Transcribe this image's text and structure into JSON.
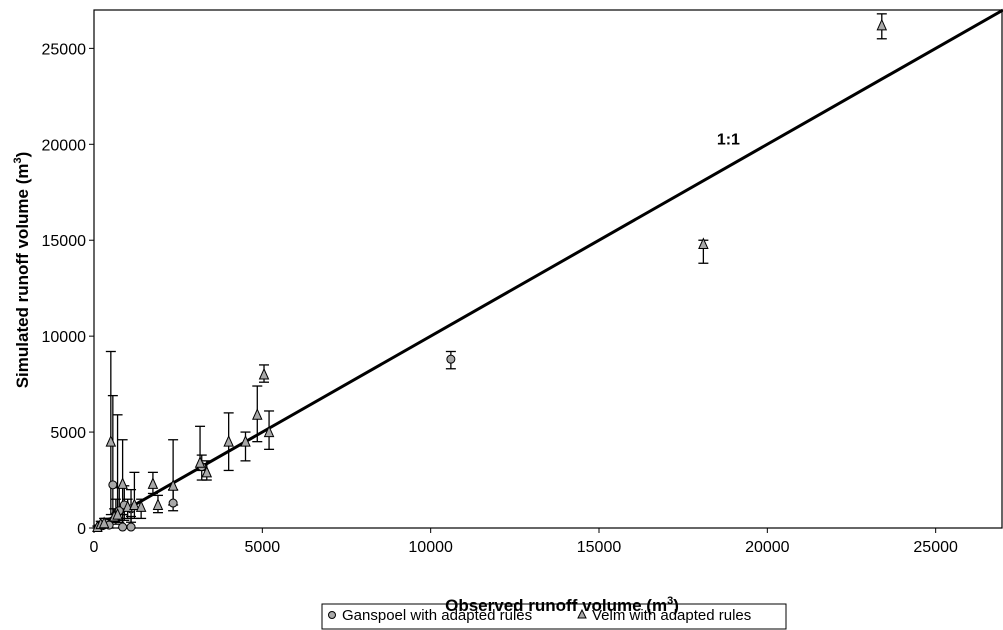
{
  "chart_data": {
    "type": "scatter",
    "xlabel": "Observed runoff volume (m",
    "xlabel_sup": "3",
    "xlabel_end": ")",
    "ylabel": "Simulated runoff volume (m",
    "ylabel_sup": "3",
    "ylabel_end": ")",
    "xlim": [
      0,
      27000
    ],
    "ylim": [
      0,
      27000
    ],
    "x_ticks": [
      0,
      5000,
      10000,
      15000,
      20000,
      25000
    ],
    "y_ticks": [
      0,
      5000,
      10000,
      15000,
      20000,
      25000
    ],
    "x_tick_labels": [
      "0",
      "5000",
      "10000",
      "15000",
      "20000",
      "25000"
    ],
    "y_tick_labels": [
      "0",
      "5000",
      "10000",
      "15000",
      "20000",
      "25000"
    ],
    "grid": false,
    "legend_position": "bottom-center",
    "reference_line": {
      "label": "1:1",
      "from": [
        0,
        0
      ],
      "to": [
        27000,
        27000
      ],
      "label_at": [
        18500,
        20000
      ]
    },
    "series": [
      {
        "name": "Ganspoel with adapted rules",
        "marker": "circle",
        "color": "#a8a8a8",
        "points": [
          {
            "x": 150,
            "y": 50,
            "lo": 0,
            "hi": 150
          },
          {
            "x": 250,
            "y": 120,
            "lo": 0,
            "hi": 300
          },
          {
            "x": 350,
            "y": 250,
            "lo": 50,
            "hi": 500
          },
          {
            "x": 450,
            "y": 150,
            "lo": 0,
            "hi": 400
          },
          {
            "x": 560,
            "y": 2250,
            "lo": 500,
            "hi": 6900
          },
          {
            "x": 650,
            "y": 700,
            "lo": 200,
            "hi": 1500
          },
          {
            "x": 750,
            "y": 900,
            "lo": 300,
            "hi": 2100
          },
          {
            "x": 850,
            "y": 50,
            "lo": 0,
            "hi": 700
          },
          {
            "x": 900,
            "y": 1200,
            "lo": 400,
            "hi": 2200
          },
          {
            "x": 1100,
            "y": 1000,
            "lo": 300,
            "hi": 2000
          },
          {
            "x": 1100,
            "y": 50,
            "lo": 0,
            "hi": 600
          },
          {
            "x": 2350,
            "y": 1300,
            "lo": 900,
            "hi": 2000
          },
          {
            "x": 3200,
            "y": 3200,
            "lo": 2500,
            "hi": 3800
          },
          {
            "x": 10600,
            "y": 8800,
            "lo": 8300,
            "hi": 9200
          }
        ]
      },
      {
        "name": "Velm with adapted rules",
        "marker": "triangle",
        "color": "#a8a8a8",
        "points": [
          {
            "x": 100,
            "y": 50,
            "lo": 0,
            "hi": 100
          },
          {
            "x": 200,
            "y": 200,
            "lo": 50,
            "hi": 350
          },
          {
            "x": 300,
            "y": 250,
            "lo": 100,
            "hi": 500
          },
          {
            "x": 500,
            "y": 4500,
            "lo": 700,
            "hi": 9200
          },
          {
            "x": 600,
            "y": 600,
            "lo": 300,
            "hi": 1000
          },
          {
            "x": 700,
            "y": 700,
            "lo": 300,
            "hi": 5900
          },
          {
            "x": 850,
            "y": 2300,
            "lo": 700,
            "hi": 4600
          },
          {
            "x": 1000,
            "y": 1100,
            "lo": 500,
            "hi": 1500
          },
          {
            "x": 1200,
            "y": 1200,
            "lo": 500,
            "hi": 2900
          },
          {
            "x": 1400,
            "y": 1100,
            "lo": 500,
            "hi": 1500
          },
          {
            "x": 1750,
            "y": 2300,
            "lo": 1800,
            "hi": 2900
          },
          {
            "x": 1900,
            "y": 1200,
            "lo": 800,
            "hi": 1700
          },
          {
            "x": 2350,
            "y": 2200,
            "lo": 1200,
            "hi": 4600
          },
          {
            "x": 3150,
            "y": 3400,
            "lo": 3000,
            "hi": 5300
          },
          {
            "x": 3350,
            "y": 2900,
            "lo": 2500,
            "hi": 3500
          },
          {
            "x": 4000,
            "y": 4500,
            "lo": 3000,
            "hi": 6000
          },
          {
            "x": 4500,
            "y": 4500,
            "lo": 3500,
            "hi": 5000
          },
          {
            "x": 4850,
            "y": 5900,
            "lo": 4500,
            "hi": 7400
          },
          {
            "x": 5050,
            "y": 8000,
            "lo": 7600,
            "hi": 8500
          },
          {
            "x": 5200,
            "y": 5000,
            "lo": 4100,
            "hi": 6100
          },
          {
            "x": 18100,
            "y": 14800,
            "lo": 13800,
            "hi": 15000
          },
          {
            "x": 23400,
            "y": 26200,
            "lo": 25500,
            "hi": 26800
          }
        ]
      }
    ]
  }
}
